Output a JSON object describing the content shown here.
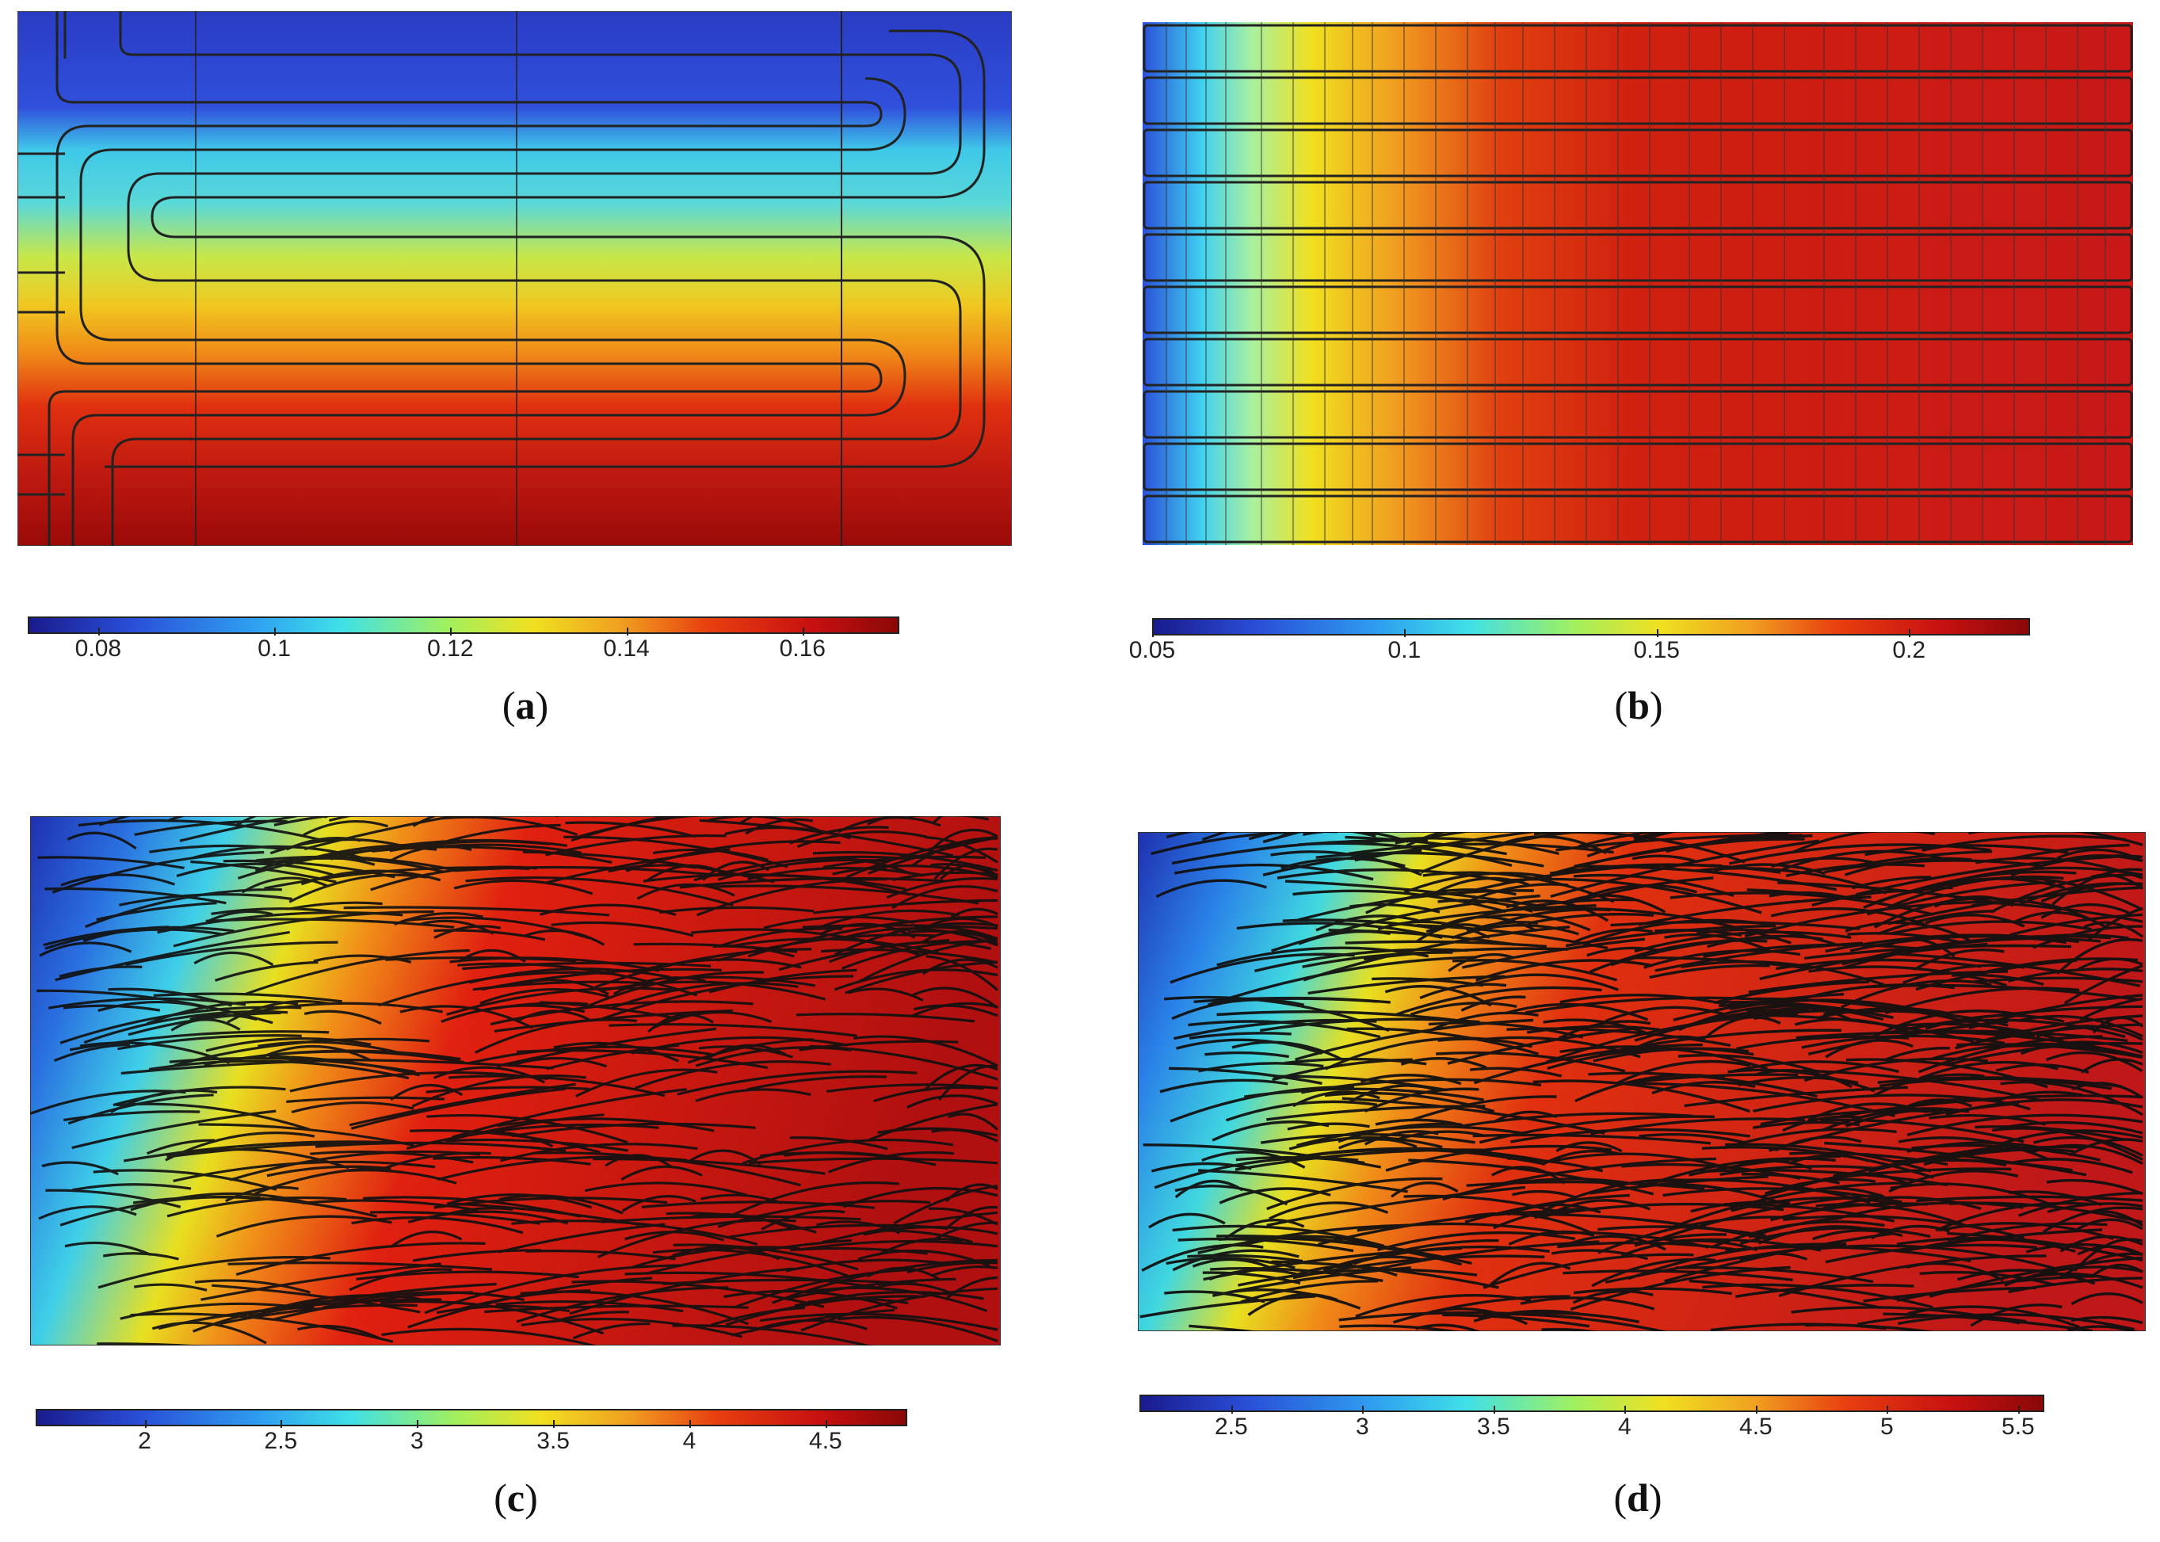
{
  "figure": {
    "panels": [
      {
        "id": "a",
        "caption_open": "(",
        "caption_letter": "a",
        "caption_close": ")",
        "plot_kind": "serpentine-channel",
        "colorbar": {
          "min": 0.072,
          "max": 0.171,
          "ticks": [
            0.08,
            0.1,
            0.12,
            0.14,
            0.16
          ],
          "tick_labels": [
            "0.08",
            "0.1",
            "0.12",
            "0.14",
            "0.16"
          ]
        }
      },
      {
        "id": "b",
        "caption_open": "(",
        "caption_letter": "b",
        "caption_close": ")",
        "plot_kind": "parallel-channels",
        "channel_count": 10,
        "colorbar": {
          "min": 0.05,
          "max": 0.224,
          "ticks": [
            0.05,
            0.1,
            0.15,
            0.2
          ],
          "tick_labels": [
            "0.05",
            "0.1",
            "0.15",
            "0.2"
          ]
        }
      },
      {
        "id": "c",
        "caption_open": "(",
        "caption_letter": "c",
        "caption_close": ")",
        "plot_kind": "fibrous-streamlines",
        "colorbar": {
          "min": 1.6,
          "max": 4.8,
          "ticks": [
            2,
            2.5,
            3,
            3.5,
            4,
            4.5
          ],
          "tick_labels": [
            "2",
            "2.5",
            "3",
            "3.5",
            "4",
            "4.5"
          ]
        }
      },
      {
        "id": "d",
        "caption_open": "(",
        "caption_letter": "d",
        "caption_close": ")",
        "plot_kind": "fibrous-streamlines-dense",
        "colorbar": {
          "min": 2.15,
          "max": 5.6,
          "ticks": [
            2.5,
            3,
            3.5,
            4,
            4.5,
            5,
            5.5
          ],
          "tick_labels": [
            "2.5",
            "3",
            "3.5",
            "4",
            "4.5",
            "5",
            "5.5"
          ]
        }
      }
    ],
    "colormap": [
      "#1a1a8c",
      "#2a4fd8",
      "#2fa0f0",
      "#3fe0e8",
      "#a0f060",
      "#f0e020",
      "#f0a020",
      "#e84010",
      "#c81010",
      "#8a0808"
    ]
  }
}
